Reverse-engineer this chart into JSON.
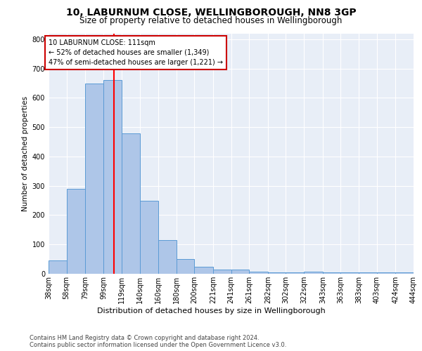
{
  "title1": "10, LABURNUM CLOSE, WELLINGBOROUGH, NN8 3GP",
  "title2": "Size of property relative to detached houses in Wellingborough",
  "xlabel": "Distribution of detached houses by size in Wellingborough",
  "ylabel": "Number of detached properties",
  "footer1": "Contains HM Land Registry data © Crown copyright and database right 2024.",
  "footer2": "Contains public sector information licensed under the Open Government Licence v3.0.",
  "annotation_line1": "10 LABURNUM CLOSE: 111sqm",
  "annotation_line2": "← 52% of detached houses are smaller (1,349)",
  "annotation_line3": "47% of semi-detached houses are larger (1,221) →",
  "bar_color": "#aec6e8",
  "bar_edge_color": "#5b9bd5",
  "red_line_x": 111,
  "bin_edges": [
    38,
    58,
    79,
    99,
    119,
    140,
    160,
    180,
    200,
    221,
    241,
    261,
    282,
    302,
    322,
    343,
    363,
    383,
    403,
    424,
    444
  ],
  "bar_values": [
    45,
    290,
    650,
    660,
    480,
    250,
    115,
    50,
    25,
    15,
    15,
    8,
    5,
    5,
    8,
    5,
    5,
    5,
    5,
    5
  ],
  "ylim": [
    0,
    820
  ],
  "yticks": [
    0,
    100,
    200,
    300,
    400,
    500,
    600,
    700,
    800
  ],
  "background_color": "#e8eef7",
  "grid_color": "#ffffff",
  "title1_fontsize": 10,
  "title2_fontsize": 8.5,
  "tick_label_fontsize": 7,
  "ylabel_fontsize": 7.5,
  "xlabel_fontsize": 8,
  "annotation_fontsize": 7,
  "annotation_box_color": "#ffffff",
  "annotation_box_edge": "#cc0000",
  "footer_fontsize": 6,
  "footer_color": "#444444"
}
